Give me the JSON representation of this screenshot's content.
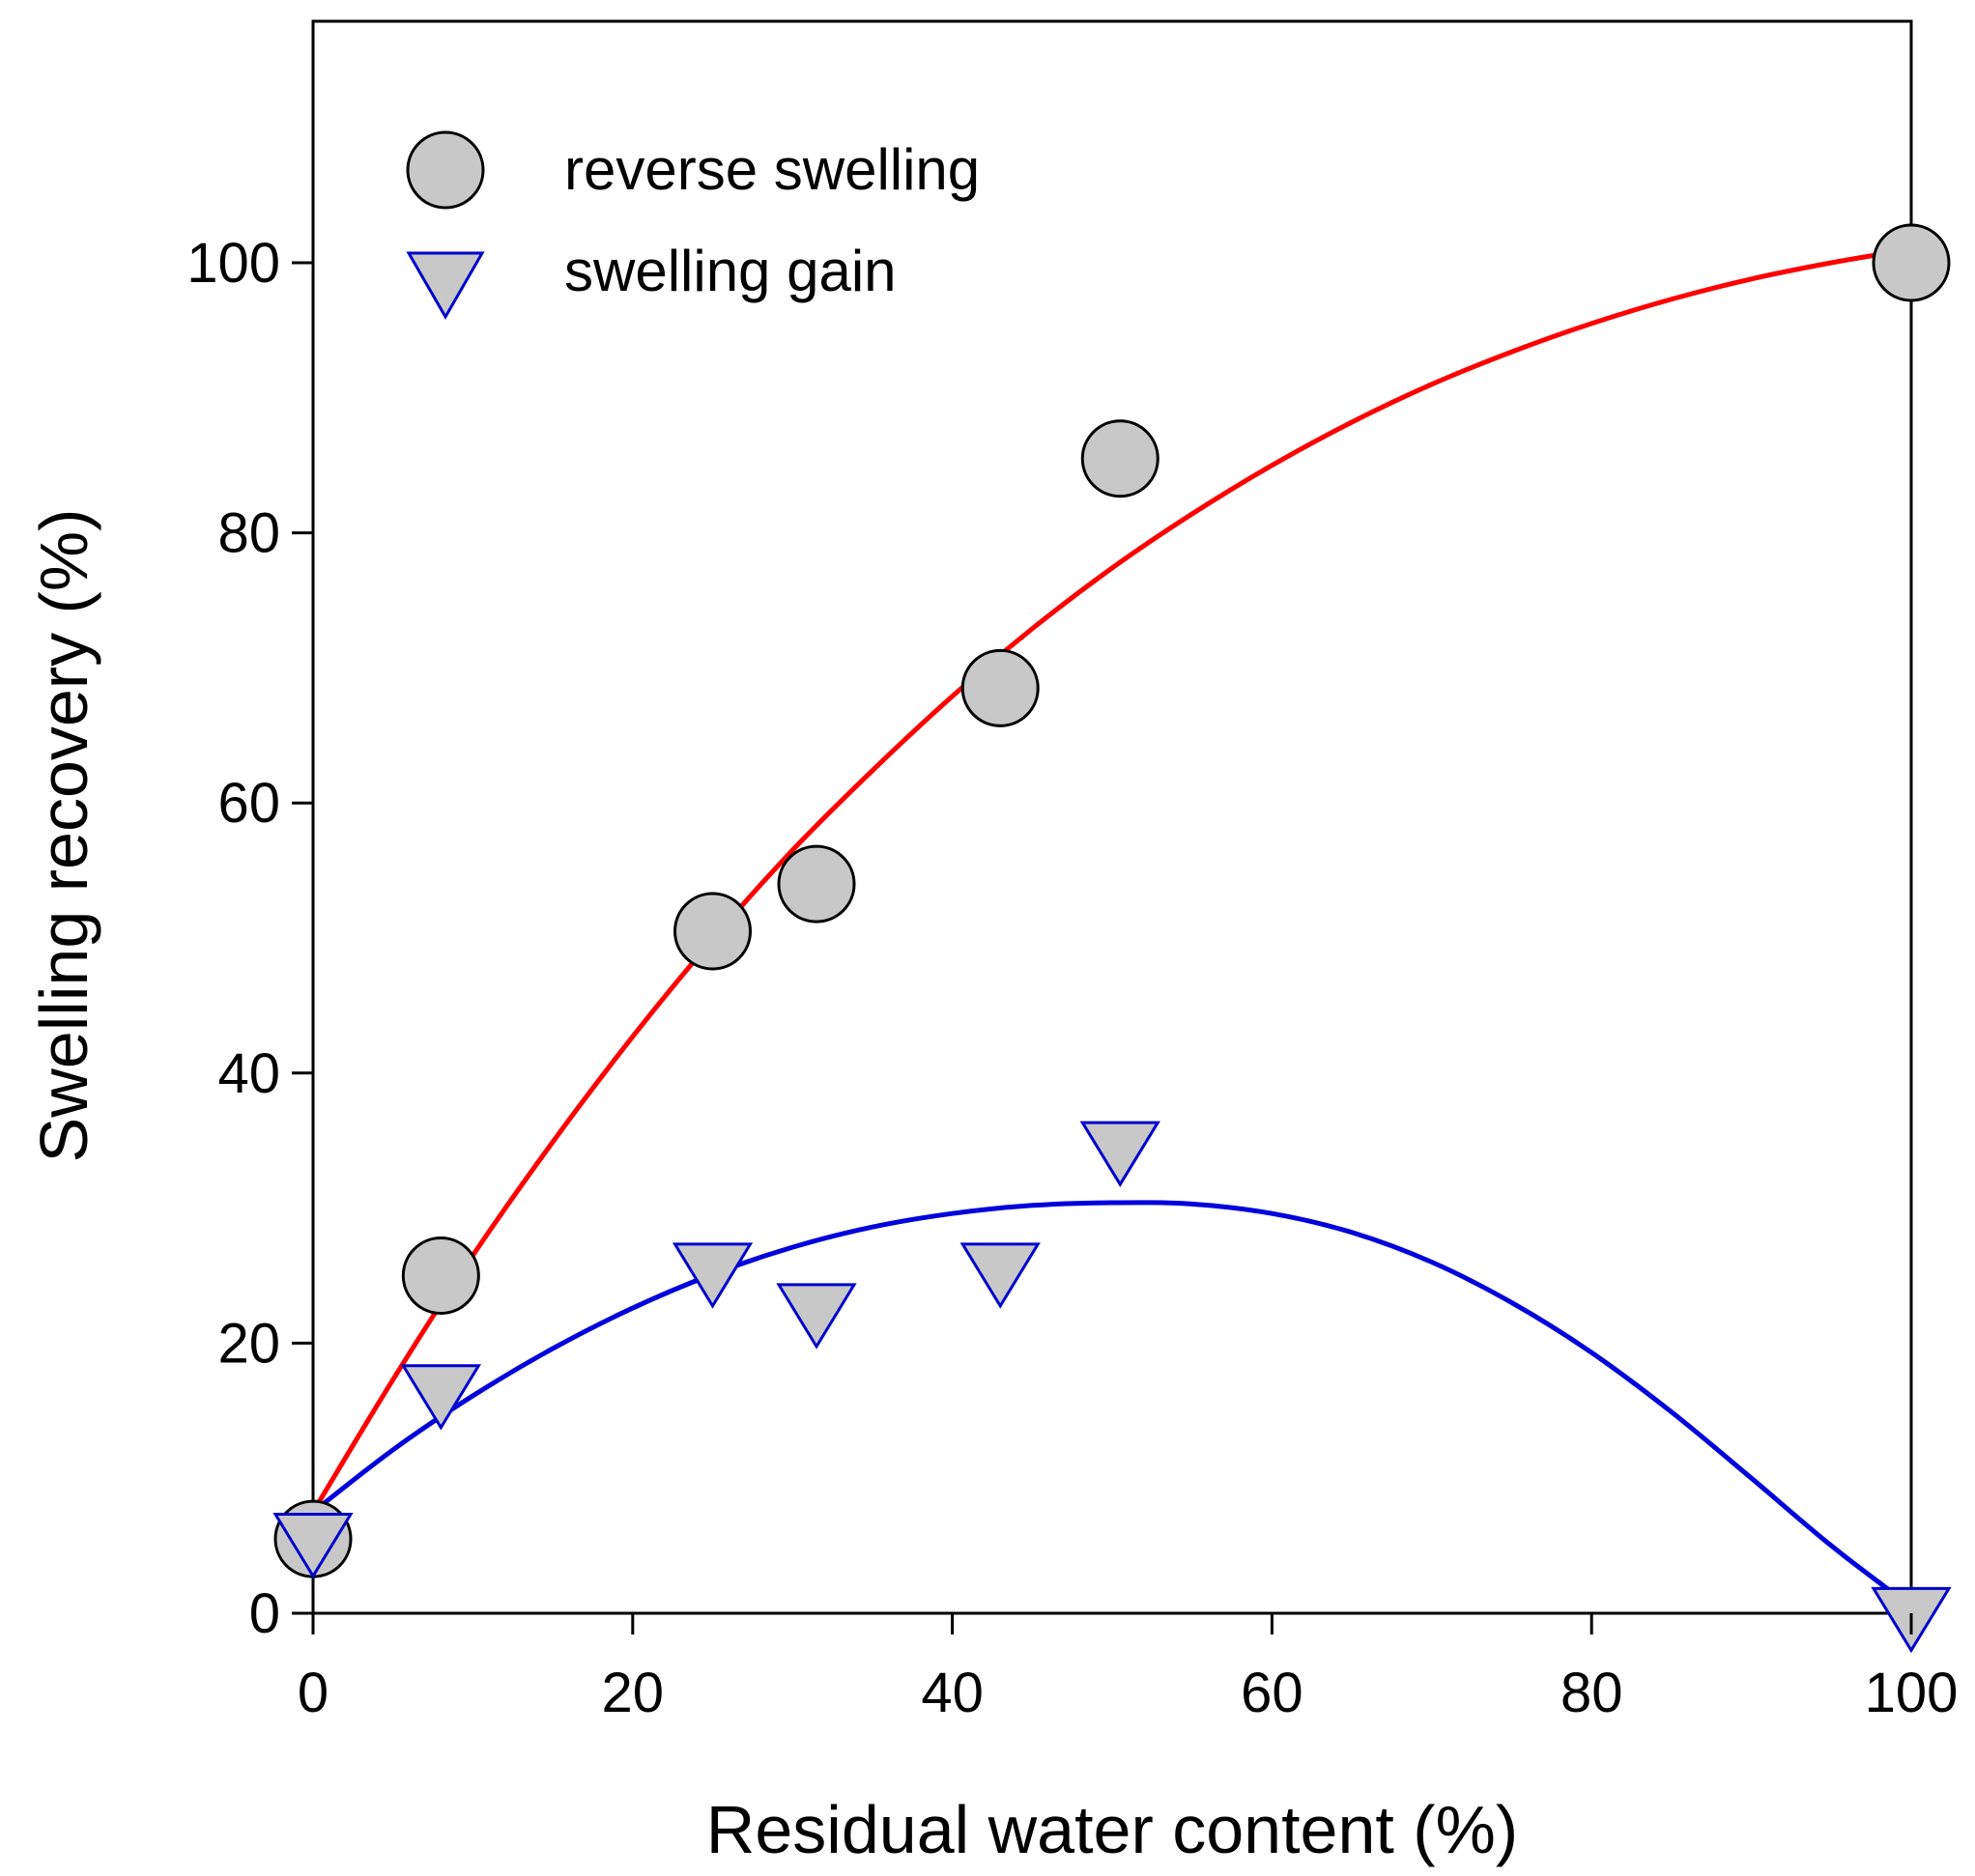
{
  "chart_data": {
    "type": "scatter",
    "title": "",
    "xlabel": "Residual water content (%)",
    "ylabel": "Swelling recovery (%)",
    "xlim": [
      0,
      100
    ],
    "ylim": [
      0,
      118
    ],
    "xticks": [
      0,
      20,
      40,
      60,
      80,
      100
    ],
    "yticks": [
      0,
      20,
      40,
      60,
      80,
      100
    ],
    "grid": false,
    "legend_position": "top-left",
    "series": [
      {
        "name": "reverse swelling",
        "marker": "circle",
        "marker_fill": "#c8c8c8",
        "marker_edge": "#000000",
        "x": [
          0,
          8,
          25,
          31.5,
          43,
          50.5,
          100
        ],
        "y": [
          5.5,
          25,
          50.5,
          54,
          68.5,
          85.5,
          100
        ],
        "fit": {
          "color": "#ff0000",
          "x": [
            0,
            5,
            10,
            15,
            20,
            25,
            30,
            35,
            40,
            45,
            50,
            55,
            60,
            65,
            70,
            75,
            80,
            85,
            90,
            95,
            100
          ],
          "y": [
            7.5,
            17.3,
            26.5,
            34.9,
            42.7,
            49.9,
            56.5,
            62.4,
            67.9,
            72.9,
            77.4,
            81.4,
            85.0,
            88.2,
            91.0,
            93.4,
            95.5,
            97.3,
            98.8,
            100.0,
            101.0
          ]
        }
      },
      {
        "name": "swelling gain",
        "marker": "triangle-down",
        "marker_fill": "#c8c8c8",
        "marker_edge": "#0000cc",
        "x": [
          0,
          8,
          25,
          31.5,
          43,
          50.5,
          100
        ],
        "y": [
          5.5,
          16.5,
          25.5,
          22.5,
          25.5,
          34.5,
          0
        ],
        "fit": {
          "color": "#0000dd",
          "x": [
            0,
            5,
            10,
            15,
            20,
            25,
            30,
            35,
            40,
            45,
            50,
            55,
            60,
            65,
            70,
            75,
            80,
            85,
            90,
            95,
            100
          ],
          "y": [
            7.5,
            12.1,
            16.1,
            19.6,
            22.6,
            25.1,
            27.1,
            28.6,
            29.6,
            30.2,
            30.4,
            30.3,
            29.6,
            28.2,
            26.0,
            23.0,
            19.3,
            14.9,
            10.0,
            5.0,
            0.5
          ]
        }
      }
    ]
  }
}
